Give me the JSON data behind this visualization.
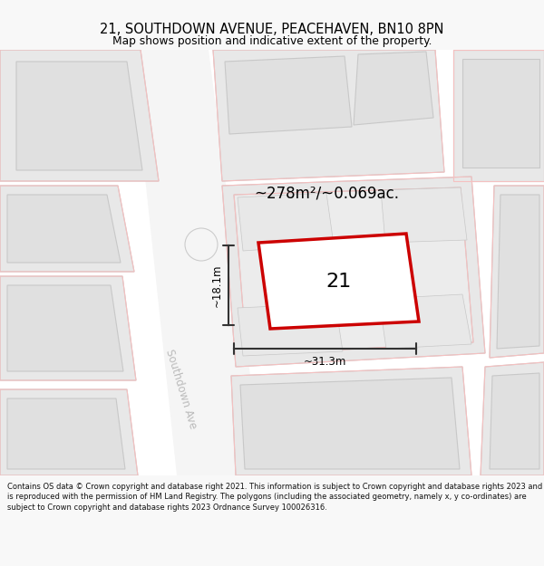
{
  "title_line1": "21, SOUTHDOWN AVENUE, PEACEHAVEN, BN10 8PN",
  "title_line2": "Map shows position and indicative extent of the property.",
  "area_label": "~278m²/~0.069ac.",
  "property_number": "21",
  "width_label": "~31.3m",
  "height_label": "~18.1m",
  "street_label": "Southdown Ave",
  "footer_text": "Contains OS data © Crown copyright and database right 2021. This information is subject to Crown copyright and database rights 2023 and is reproduced with the permission of HM Land Registry. The polygons (including the associated geometry, namely x, y co-ordinates) are subject to Crown copyright and database rights 2023 Ordnance Survey 100026316.",
  "bg_color": "#f8f8f8",
  "map_bg": "#ffffff",
  "building_fill": "#e8e8e8",
  "building_edge": "#c8c8c8",
  "plot_stroke": "#cc0000",
  "plot_fill": "#ffffff",
  "dim_line_color": "#333333",
  "street_text_color": "#bbbbbb",
  "title_color": "#000000",
  "footer_color": "#111111",
  "red_light": "#f5c0c0",
  "road_color": "#f2f2f2"
}
